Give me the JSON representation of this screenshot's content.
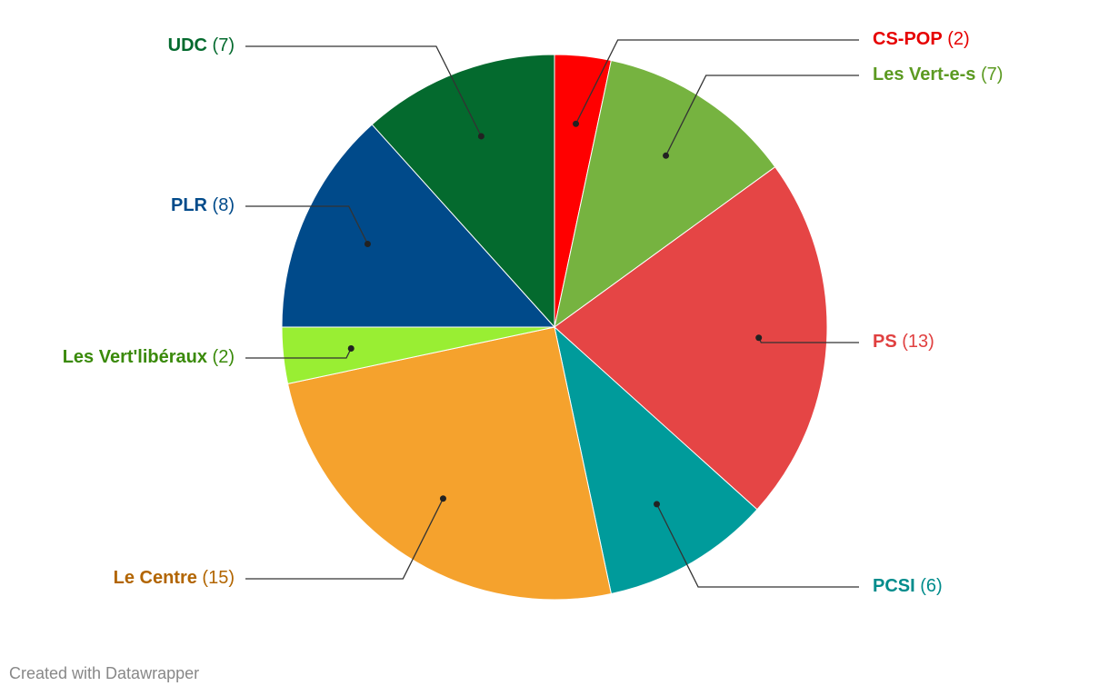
{
  "chart_data": {
    "type": "pie",
    "categories": [
      "CS-POP",
      "Les Vert-e-s",
      "PS",
      "PCSI",
      "Le Centre",
      "Les Vert'libéraux",
      "PLR",
      "UDC"
    ],
    "values": [
      2,
      7,
      13,
      6,
      15,
      2,
      8,
      7
    ],
    "value_labels": [
      "(2)",
      "(7)",
      "(13)",
      "(6)",
      "(15)",
      "(2)",
      "(8)",
      "(7)"
    ],
    "colors": [
      "#ff0000",
      "#76b340",
      "#e54545",
      "#009b9b",
      "#f5a22d",
      "#99ee33",
      "#004a8a",
      "#046a2e"
    ],
    "label_colors": [
      "#e60000",
      "#5c9a22",
      "#e04040",
      "#008c8c",
      "#b26500",
      "#3a8a0a",
      "#004a8a",
      "#046a2e"
    ],
    "credit": "Created with Datawrapper"
  }
}
